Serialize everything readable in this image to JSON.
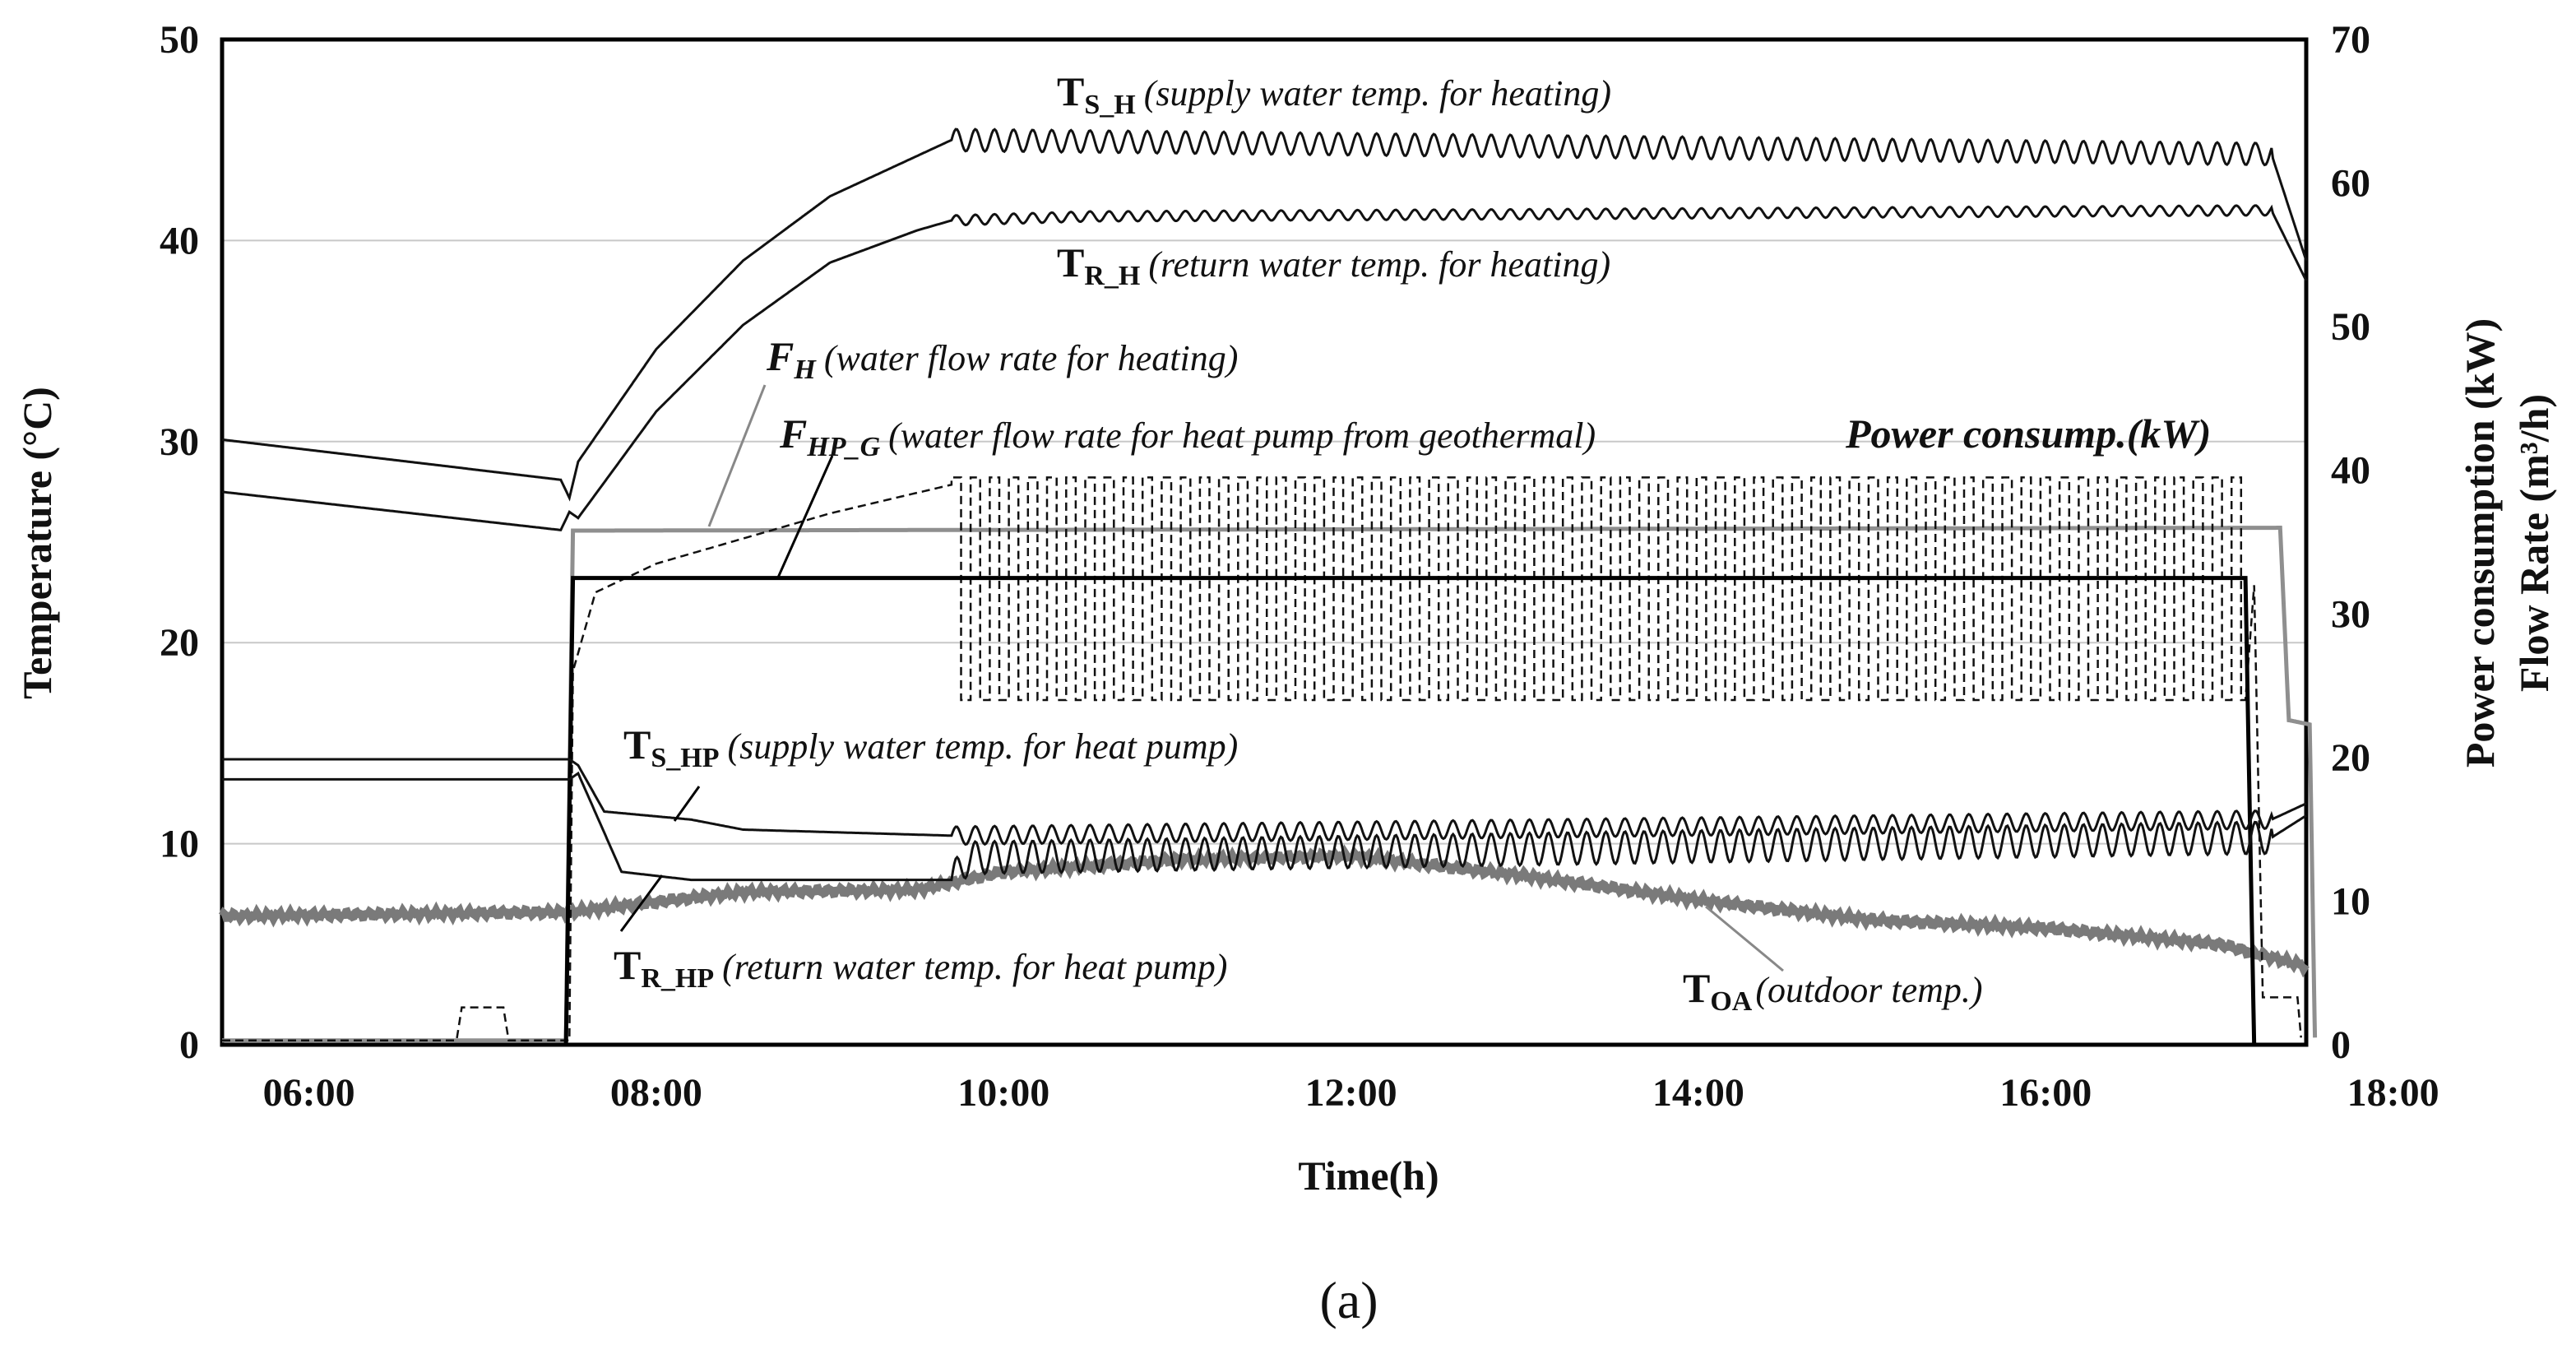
{
  "chart_data": {
    "type": "line",
    "xlabel": "Time(h)",
    "ylabel_left": "Temperature (°C)",
    "ylabel_right_1": "Power consumption (kW)",
    "ylabel_right_2": "Flow Rate (m³/h)",
    "caption": "(a)",
    "xlim_hours": [
      5.5,
      17.5
    ],
    "ylim_left": [
      0,
      50
    ],
    "ylim_right": [
      0,
      70
    ],
    "x_ticks": [
      {
        "value": 6,
        "label": "06:00"
      },
      {
        "value": 8,
        "label": "08:00"
      },
      {
        "value": 10,
        "label": "10:00"
      },
      {
        "value": 12,
        "label": "12:00"
      },
      {
        "value": 14,
        "label": "14:00"
      },
      {
        "value": 16,
        "label": "16:00"
      },
      {
        "value": 18,
        "label": "18:00"
      }
    ],
    "y_ticks_left": [
      "0",
      "10",
      "20",
      "30",
      "40",
      "50"
    ],
    "y_ticks_right": [
      "0",
      "10",
      "20",
      "30",
      "40",
      "50",
      "60",
      "70"
    ],
    "grid_y_left": [
      10,
      20,
      30,
      40
    ],
    "series": [
      {
        "name": "T_S_H",
        "axis": "left",
        "style": "solid-black",
        "points": [
          [
            5.5,
            30.1
          ],
          [
            7.45,
            28.1
          ],
          [
            7.5,
            27.2
          ],
          [
            7.55,
            29.0
          ],
          [
            8.0,
            34.6
          ],
          [
            8.5,
            39.0
          ],
          [
            9.0,
            42.2
          ],
          [
            9.5,
            44.2
          ],
          [
            9.7,
            45.0
          ],
          [
            17.3,
            44.3
          ],
          [
            17.5,
            39.0
          ]
        ],
        "oscillate": {
          "from": 9.7,
          "to": 17.3,
          "amp": 0.55,
          "period": 0.11
        }
      },
      {
        "name": "T_R_H",
        "axis": "left",
        "style": "solid-black",
        "points": [
          [
            5.5,
            27.5
          ],
          [
            7.45,
            25.6
          ],
          [
            7.5,
            26.5
          ],
          [
            7.55,
            26.2
          ],
          [
            8.0,
            31.5
          ],
          [
            8.5,
            35.8
          ],
          [
            9.0,
            38.9
          ],
          [
            9.5,
            40.5
          ],
          [
            9.7,
            41.0
          ],
          [
            10.5,
            41.2
          ],
          [
            17.3,
            41.5
          ],
          [
            17.5,
            38.0
          ]
        ],
        "oscillate": {
          "from": 9.7,
          "to": 17.3,
          "amp": 0.25,
          "period": 0.11
        }
      },
      {
        "name": "T_S_HP",
        "axis": "left",
        "style": "solid-black",
        "points": [
          [
            5.5,
            14.2
          ],
          [
            7.5,
            14.2
          ],
          [
            7.55,
            13.9
          ],
          [
            7.7,
            11.6
          ],
          [
            8.2,
            11.2
          ],
          [
            8.5,
            10.7
          ],
          [
            9.7,
            10.4
          ],
          [
            17.3,
            11.2
          ],
          [
            17.5,
            12.0
          ]
        ],
        "oscillate": {
          "from": 9.7,
          "to": 17.3,
          "amp": 0.45,
          "period": 0.11
        }
      },
      {
        "name": "T_R_HP",
        "axis": "left",
        "style": "solid-black",
        "points": [
          [
            5.5,
            13.2
          ],
          [
            7.5,
            13.2
          ],
          [
            7.55,
            13.5
          ],
          [
            7.8,
            8.6
          ],
          [
            8.2,
            8.2
          ],
          [
            9.7,
            8.2
          ],
          [
            9.8,
            9.3
          ],
          [
            17.3,
            10.3
          ],
          [
            17.5,
            11.4
          ]
        ],
        "oscillate": {
          "from": 9.7,
          "to": 17.3,
          "amp": 0.8,
          "period": 0.11
        }
      },
      {
        "name": "T_OA",
        "axis": "left",
        "style": "thick-gray",
        "points": [
          [
            5.5,
            6.4
          ],
          [
            6.5,
            6.5
          ],
          [
            7.5,
            6.6
          ],
          [
            8.5,
            7.6
          ],
          [
            9.5,
            7.7
          ],
          [
            10.0,
            8.6
          ],
          [
            11.0,
            9.2
          ],
          [
            12.0,
            9.4
          ],
          [
            13.0,
            8.4
          ],
          [
            14.0,
            7.2
          ],
          [
            15.0,
            6.2
          ],
          [
            16.0,
            5.8
          ],
          [
            17.0,
            5.0
          ],
          [
            17.5,
            3.9
          ]
        ]
      },
      {
        "name": "F_H",
        "axis": "right",
        "style": "gray-flow",
        "points": [
          [
            5.5,
            0.3
          ],
          [
            7.48,
            0.3
          ],
          [
            7.52,
            35.8
          ],
          [
            17.35,
            36.0
          ],
          [
            17.4,
            22.6
          ],
          [
            17.52,
            22.3
          ],
          [
            17.55,
            0.5
          ]
        ]
      },
      {
        "name": "F_HP_G",
        "axis": "right",
        "style": "dashed-black",
        "points": [
          [
            5.5,
            0.3
          ],
          [
            6.85,
            0.3
          ],
          [
            6.88,
            2.6
          ],
          [
            7.12,
            2.6
          ],
          [
            7.15,
            0.3
          ],
          [
            7.5,
            0.3
          ],
          [
            7.52,
            26.0
          ],
          [
            7.65,
            31.5
          ],
          [
            8.0,
            33.5
          ],
          [
            9.0,
            37.0
          ],
          [
            9.7,
            39.0
          ]
        ],
        "dashed_cycles": {
          "from": 9.7,
          "to": 17.15,
          "high": 39.5,
          "low": 24.0,
          "period": 0.11
        },
        "tail": [
          [
            17.2,
            32.0
          ],
          [
            17.25,
            3.3
          ],
          [
            17.45,
            3.3
          ],
          [
            17.47,
            0.5
          ]
        ]
      },
      {
        "name": "Power consump.(kW)",
        "axis": "right",
        "style": "solid-black-bold",
        "points": [
          [
            5.5,
            0
          ],
          [
            7.48,
            0
          ],
          [
            7.52,
            32.5
          ],
          [
            17.15,
            32.5
          ],
          [
            17.2,
            0
          ]
        ]
      }
    ],
    "annotations": [
      {
        "id": "ts_h",
        "sym": "T",
        "sub": "S_H",
        "text": "(supply water temp. for heating)"
      },
      {
        "id": "tr_h",
        "sym": "T",
        "sub": "R_H",
        "text": "(return water temp. for heating)"
      },
      {
        "id": "f_h",
        "sym": "F",
        "sub": "H",
        "text": "(water flow rate for heating)"
      },
      {
        "id": "f_hp_g",
        "sym": "F",
        "sub": "HP_G",
        "text": "(water flow rate for heat pump from geothermal)"
      },
      {
        "id": "power",
        "text": "Power consump.(kW)"
      },
      {
        "id": "ts_hp",
        "sym": "T",
        "sub": "S_HP",
        "text": "(supply water temp. for heat pump)"
      },
      {
        "id": "tr_hp",
        "sym": "T",
        "sub": "R_HP",
        "text": "(return water temp. for heat pump)"
      },
      {
        "id": "toa",
        "sym": "T",
        "sub": "OA",
        "text": "(outdoor temp.)"
      }
    ]
  }
}
